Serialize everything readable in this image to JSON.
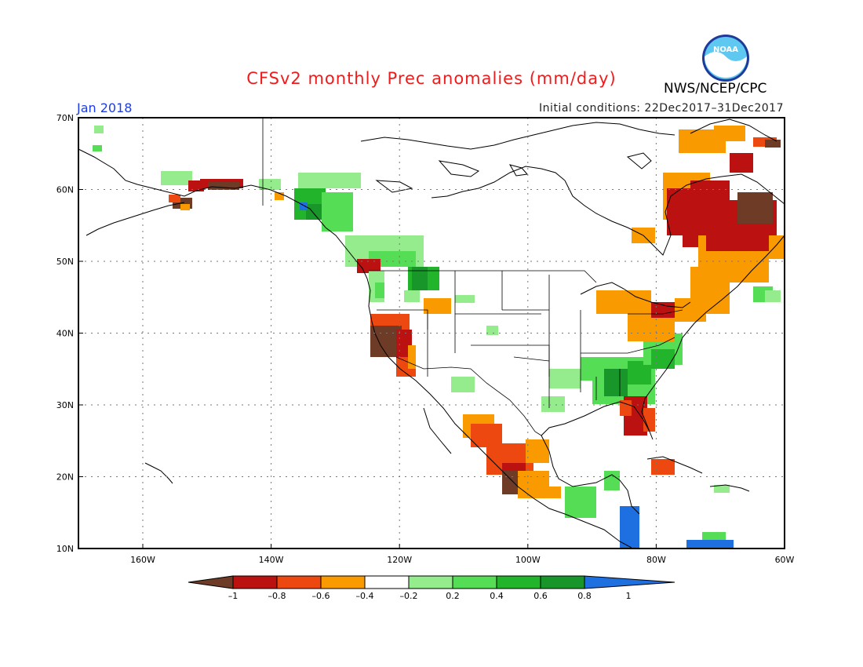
{
  "title": "CFSv2 monthly Prec anomalies (mm/day)",
  "org": "NWS/NCEP/CPC",
  "logo_text": "NOAA",
  "valid_month": "Jan 2018",
  "init_conditions": "Initial conditions: 22Dec2017–31Dec2017",
  "lat_labels": [
    "70N",
    "60N",
    "50N",
    "40N",
    "30N",
    "20N",
    "10N"
  ],
  "lon_labels": [
    "160W",
    "140W",
    "120W",
    "100W",
    "80W",
    "60W"
  ],
  "legend": {
    "labels": [
      "–1",
      "–0.8",
      "–0.6",
      "–0.4",
      "–0.2",
      "0.2",
      "0.4",
      "0.6",
      "0.8",
      "1"
    ],
    "colors": [
      "#6e3b27",
      "#bb1111",
      "#ec4810",
      "#f99a00",
      "#ffffff",
      "#95ec8c",
      "#55dd55",
      "#22b52c",
      "#18962a",
      "#1e6fe0"
    ]
  },
  "colors": {
    "title": "#ee1c1c",
    "month": "#1c3ce8",
    "coast": "#000000"
  }
}
